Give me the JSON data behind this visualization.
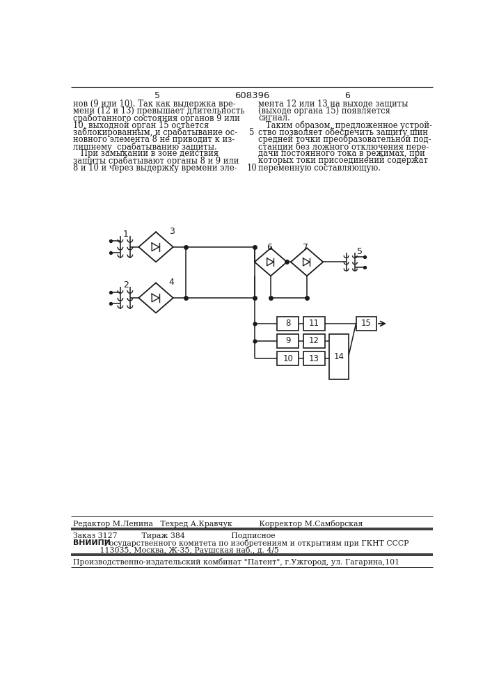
{
  "bg_color": "#ffffff",
  "line_color": "#1a1a1a",
  "text_color": "#1a1a1a",
  "header": "608396",
  "page_l": "5",
  "page_r": "6",
  "col1": [
    "нов (9 или 10). Так как выдержка вре-",
    "мени (12 и 13) превышает длительность",
    "сработанного состояния органов 9 или",
    "10, выходной орган 15 остается",
    "заблокированным, и срабатывание ос-",
    "новного элемента 8 не приводит к из-",
    "лишнему  срабатыванию защиты.",
    "   При замыкании в зоне действия",
    "защиты срабатывают органы 8 и 9 или",
    "8 и 10 и через выдержку времени эле-"
  ],
  "col2": [
    "мента 12 или 13 на выходе защиты",
    "(выходе органа 15) появляется",
    "сигнал.",
    "   Таким образом, предложенное устрой-",
    "ство позволяет обеспечить защиту шин",
    "средней точки преобразовательной под-",
    "станции без ложного отключения пере-",
    "дачи постоянного тока в режимах, при",
    "которых токи присоединений содержат",
    "переменную составляющую."
  ],
  "marker5": "5",
  "marker10": "10",
  "foot1": "Редактор М.Ленина   Техред А.Кравчук           Корректор М.Самборская",
  "foot2": "Заказ 3127          Тираж 384                   Подписное",
  "foot3": "ВНИИПИ Государственного комитета по изобретениям и открытиям при ГКНТ СССР",
  "foot4": "           113035, Москва, Ж-35, Раушская наб., д. 4/5",
  "foot5": "Производственно-издательский комбинат \"Патент\", г.Ужгород, ул. Гагарина,101"
}
